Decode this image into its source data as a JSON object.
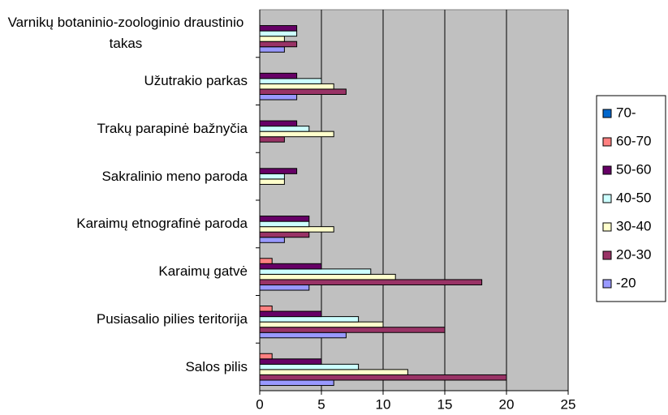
{
  "chart_data": {
    "type": "bar",
    "orientation": "horizontal",
    "categories": [
      "Salos pilis",
      "Pusiasalio pilies teritorija",
      "Karaimų gatvė",
      "Karaimų etnografinė paroda",
      "Sakralinio meno paroda",
      "Trakų parapinė bažnyčia",
      "Užutrakio parkas",
      "Varnikų  botaninio-zoologinio draustinio takas"
    ],
    "series": [
      {
        "name": "-20",
        "color": "#9999ff",
        "values": [
          6,
          7,
          4,
          2,
          0,
          0,
          3,
          2
        ]
      },
      {
        "name": "20-30",
        "color": "#993366",
        "values": [
          20,
          15,
          18,
          4,
          0,
          2,
          7,
          3
        ]
      },
      {
        "name": "30-40",
        "color": "#ffffcc",
        "values": [
          12,
          10,
          11,
          6,
          2,
          6,
          6,
          2
        ]
      },
      {
        "name": "40-50",
        "color": "#ccffff",
        "values": [
          8,
          8,
          9,
          4,
          2,
          4,
          5,
          3
        ]
      },
      {
        "name": "50-60",
        "color": "#660066",
        "values": [
          5,
          5,
          5,
          4,
          3,
          3,
          3,
          3
        ]
      },
      {
        "name": "60-70",
        "color": "#ff8080",
        "values": [
          1,
          1,
          1,
          0,
          0,
          0,
          0,
          0
        ]
      },
      {
        "name": "70-",
        "color": "#0066cc",
        "values": [
          0,
          0,
          0,
          0,
          0,
          0,
          0,
          0
        ]
      }
    ],
    "xlim": [
      0,
      25
    ],
    "xticks": [
      0,
      5,
      10,
      15,
      20,
      25
    ],
    "grid": true,
    "legend": "right",
    "plot_background": "#c0c0c0"
  }
}
